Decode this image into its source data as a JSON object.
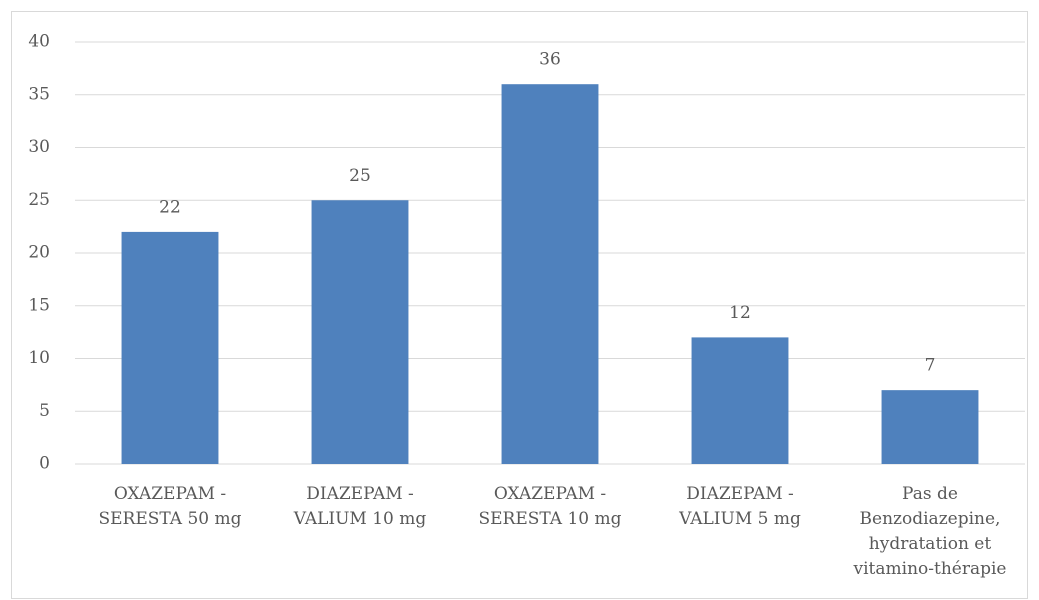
{
  "chart_data": {
    "type": "bar",
    "categories": [
      "OXAZEPAM -\nSERESTA 50 mg",
      "DIAZEPAM -\nVALIUM 10 mg",
      "OXAZEPAM -\nSERESTA 10 mg",
      "DIAZEPAM -\nVALIUM 5 mg",
      "Pas de\nBenzodiazepine,\nhydratation et\nvitamino-thérapie"
    ],
    "values": [
      22,
      25,
      36,
      12,
      7
    ],
    "color": "#4f81bd",
    "ylim": [
      0,
      40
    ],
    "yticks": [
      0,
      5,
      10,
      15,
      20,
      25,
      30,
      35,
      40
    ],
    "grid": true
  }
}
